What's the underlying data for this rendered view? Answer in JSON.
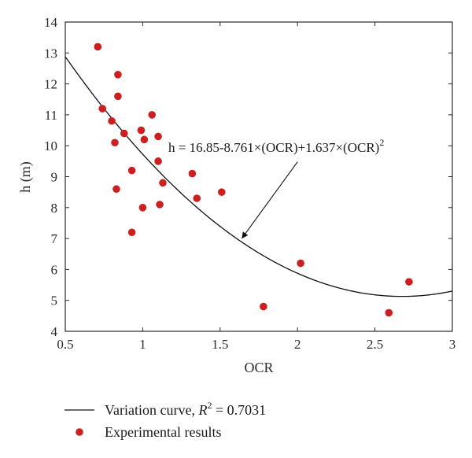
{
  "chart_data": {
    "type": "scatter",
    "xlabel": "OCR",
    "ylabel": "h (m)",
    "xlim": [
      0.5,
      3
    ],
    "ylim": [
      4,
      14
    ],
    "xticks": [
      "0.5",
      "1",
      "1.5",
      "2",
      "2.5",
      "3"
    ],
    "yticks": [
      "4",
      "5",
      "6",
      "7",
      "8",
      "9",
      "10",
      "11",
      "12",
      "13",
      "14"
    ],
    "grid": false,
    "legend_position": "bottom",
    "series": [
      {
        "name": "Experimental results",
        "kind": "scatter",
        "color": "#cc1f1f",
        "points": [
          {
            "x": 0.71,
            "y": 13.2
          },
          {
            "x": 0.74,
            "y": 11.2
          },
          {
            "x": 0.8,
            "y": 10.8
          },
          {
            "x": 0.82,
            "y": 10.1
          },
          {
            "x": 0.83,
            "y": 8.6
          },
          {
            "x": 0.84,
            "y": 12.3
          },
          {
            "x": 0.84,
            "y": 11.6
          },
          {
            "x": 0.88,
            "y": 10.4
          },
          {
            "x": 0.93,
            "y": 9.2
          },
          {
            "x": 0.93,
            "y": 7.2
          },
          {
            "x": 0.99,
            "y": 10.5
          },
          {
            "x": 1.0,
            "y": 8.0
          },
          {
            "x": 1.01,
            "y": 10.2
          },
          {
            "x": 1.06,
            "y": 11.0
          },
          {
            "x": 1.1,
            "y": 10.3
          },
          {
            "x": 1.1,
            "y": 9.5
          },
          {
            "x": 1.11,
            "y": 8.1
          },
          {
            "x": 1.13,
            "y": 8.8
          },
          {
            "x": 1.32,
            "y": 9.1
          },
          {
            "x": 1.35,
            "y": 8.3
          },
          {
            "x": 1.51,
            "y": 8.5
          },
          {
            "x": 1.78,
            "y": 4.8
          },
          {
            "x": 2.02,
            "y": 6.2
          },
          {
            "x": 2.59,
            "y": 4.6
          },
          {
            "x": 2.72,
            "y": 5.6
          }
        ]
      },
      {
        "name": "Variation curve",
        "kind": "curve",
        "color": "#111111",
        "coefficients": [
          16.85,
          -8.761,
          1.637
        ],
        "r2_label": "0.7031"
      }
    ],
    "annotation": {
      "text_main": "h = 16.85-8.761×(OCR)+1.637×(OCR)",
      "text_sup": "2",
      "arrow_target": {
        "x": 1.64,
        "y": 7.0
      },
      "arrow_from": {
        "x": 2.0,
        "y": 9.48
      }
    },
    "legend": [
      {
        "kind": "line",
        "label_prefix": "Variation curve, ",
        "label_var": "R",
        "label_sup": "2",
        "label_suffix": " = 0.7031"
      },
      {
        "kind": "marker",
        "label": "Experimental results"
      }
    ]
  }
}
